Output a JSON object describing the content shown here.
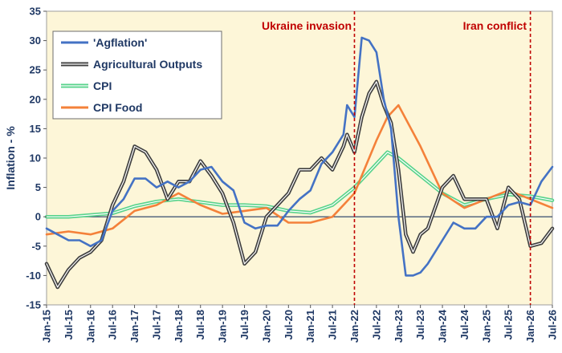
{
  "chart_data": {
    "type": "line",
    "title": "",
    "xlabel": "",
    "ylabel": "Inflation - %",
    "ylim": [
      -15,
      35
    ],
    "yticks": [
      35,
      30,
      25,
      20,
      15,
      10,
      5,
      0,
      -5,
      -10,
      -15
    ],
    "xlim": [
      "Jan-15",
      "Jul-26"
    ],
    "xticks": [
      "Jan-15",
      "Jul-15",
      "Jan-16",
      "Jul-16",
      "Jan-17",
      "Jul-17",
      "Jan-18",
      "Jul-18",
      "Jan-19",
      "Jul-19",
      "Jan-20",
      "Jul-20",
      "Jan-21",
      "Jul-21",
      "Jan-22",
      "Jul-22",
      "Jan-23",
      "Jul-23",
      "Jan-24",
      "Jul-24",
      "Jan-25",
      "Jul-25",
      "Jan-26",
      "Jul-26"
    ],
    "background_color": "#fdf6d8",
    "grid": false,
    "legend_position": "top-left",
    "annotations": [
      {
        "text": "Ukraine invasion",
        "x": "Jan-22",
        "color": "#c00000"
      },
      {
        "text": "Iran conflict",
        "x": "Jan-26",
        "color": "#c00000"
      }
    ],
    "series": [
      {
        "name": "'Agflation'",
        "color": "#4472c4",
        "points": [
          [
            "Jan-15",
            -2
          ],
          [
            "Apr-15",
            -3
          ],
          [
            "Jul-15",
            -4
          ],
          [
            "Oct-15",
            -4
          ],
          [
            "Jan-16",
            -5
          ],
          [
            "Apr-16",
            -4
          ],
          [
            "Jul-16",
            1
          ],
          [
            "Oct-16",
            3
          ],
          [
            "Jan-17",
            6.5
          ],
          [
            "Apr-17",
            6.5
          ],
          [
            "Jul-17",
            5
          ],
          [
            "Oct-17",
            6
          ],
          [
            "Jan-18",
            5
          ],
          [
            "Apr-18",
            6
          ],
          [
            "Jul-18",
            8
          ],
          [
            "Oct-18",
            8.5
          ],
          [
            "Jan-19",
            6
          ],
          [
            "Apr-19",
            4.5
          ],
          [
            "Jul-19",
            -1
          ],
          [
            "Oct-19",
            -2
          ],
          [
            "Jan-20",
            -1.5
          ],
          [
            "Apr-20",
            -1.5
          ],
          [
            "Jul-20",
            1
          ],
          [
            "Oct-20",
            3
          ],
          [
            "Jan-21",
            4.5
          ],
          [
            "Apr-21",
            9
          ],
          [
            "Jul-21",
            11
          ],
          [
            "Oct-21",
            14
          ],
          [
            "Nov-21",
            19
          ],
          [
            "Jan-22",
            17
          ],
          [
            "Mar-22",
            30.5
          ],
          [
            "May-22",
            30
          ],
          [
            "Jul-22",
            28
          ],
          [
            "Sep-22",
            20
          ],
          [
            "Nov-22",
            15
          ],
          [
            "Jan-23",
            0
          ],
          [
            "Mar-23",
            -10
          ],
          [
            "May-23",
            -10
          ],
          [
            "Jul-23",
            -9.5
          ],
          [
            "Sep-23",
            -8
          ],
          [
            "Jan-24",
            -4
          ],
          [
            "Apr-24",
            -1
          ],
          [
            "Jul-24",
            -2
          ],
          [
            "Oct-24",
            -2
          ],
          [
            "Jan-25",
            0
          ],
          [
            "Apr-25",
            0
          ],
          [
            "Jul-25",
            2
          ],
          [
            "Oct-25",
            2.5
          ],
          [
            "Jan-26",
            2
          ],
          [
            "Apr-26",
            6
          ],
          [
            "Jul-26",
            8.5
          ]
        ]
      },
      {
        "name": "Agricultural Outputs",
        "color": "#404040",
        "points": [
          [
            "Jan-15",
            -8
          ],
          [
            "Apr-15",
            -12
          ],
          [
            "Jul-15",
            -9
          ],
          [
            "Oct-15",
            -7
          ],
          [
            "Jan-16",
            -6
          ],
          [
            "Apr-16",
            -4
          ],
          [
            "Jul-16",
            2
          ],
          [
            "Oct-16",
            6
          ],
          [
            "Jan-17",
            12
          ],
          [
            "Apr-17",
            11
          ],
          [
            "Jul-17",
            8
          ],
          [
            "Oct-17",
            3
          ],
          [
            "Jan-18",
            6
          ],
          [
            "Apr-18",
            6
          ],
          [
            "Jul-18",
            9.5
          ],
          [
            "Oct-18",
            7
          ],
          [
            "Jan-19",
            4
          ],
          [
            "Apr-19",
            -1
          ],
          [
            "Jul-19",
            -8
          ],
          [
            "Oct-19",
            -6
          ],
          [
            "Jan-20",
            0
          ],
          [
            "Apr-20",
            2
          ],
          [
            "Jul-20",
            4
          ],
          [
            "Oct-20",
            8
          ],
          [
            "Jan-21",
            8
          ],
          [
            "Apr-21",
            10
          ],
          [
            "Jul-21",
            8
          ],
          [
            "Oct-21",
            12
          ],
          [
            "Nov-21",
            14
          ],
          [
            "Jan-22",
            11
          ],
          [
            "Mar-22",
            17
          ],
          [
            "May-22",
            21
          ],
          [
            "Jul-22",
            23
          ],
          [
            "Sep-22",
            19
          ],
          [
            "Nov-22",
            16
          ],
          [
            "Jan-23",
            8
          ],
          [
            "Mar-23",
            -3
          ],
          [
            "May-23",
            -6
          ],
          [
            "Jul-23",
            -3
          ],
          [
            "Sep-23",
            -2
          ],
          [
            "Jan-24",
            5
          ],
          [
            "Apr-24",
            7
          ],
          [
            "Jul-24",
            3
          ],
          [
            "Oct-24",
            3
          ],
          [
            "Jan-25",
            3
          ],
          [
            "Apr-25",
            -2
          ],
          [
            "Jul-25",
            5
          ],
          [
            "Oct-25",
            3
          ],
          [
            "Jan-26",
            -5
          ],
          [
            "Apr-26",
            -4.5
          ],
          [
            "Jul-26",
            -2
          ]
        ]
      },
      {
        "name": "CPI",
        "color": "#59d38c",
        "points": [
          [
            "Jan-15",
            0
          ],
          [
            "Jul-15",
            0
          ],
          [
            "Jan-16",
            0.3
          ],
          [
            "Jul-16",
            0.6
          ],
          [
            "Jan-17",
            1.8
          ],
          [
            "Jul-17",
            2.6
          ],
          [
            "Jan-18",
            3
          ],
          [
            "Jul-18",
            2.5
          ],
          [
            "Jan-19",
            2
          ],
          [
            "Jul-19",
            2
          ],
          [
            "Jan-20",
            1.8
          ],
          [
            "Jul-20",
            1
          ],
          [
            "Jan-21",
            0.7
          ],
          [
            "Jul-21",
            2
          ],
          [
            "Jan-22",
            5
          ],
          [
            "Jul-22",
            9
          ],
          [
            "Oct-22",
            11
          ],
          [
            "Jan-23",
            10
          ],
          [
            "Jul-23",
            7
          ],
          [
            "Jan-24",
            4
          ],
          [
            "Jul-24",
            2
          ],
          [
            "Jan-25",
            3
          ],
          [
            "Jul-25",
            3.8
          ],
          [
            "Jan-26",
            3.5
          ],
          [
            "Jul-26",
            2.8
          ]
        ]
      },
      {
        "name": "CPI Food",
        "color": "#f4813a",
        "points": [
          [
            "Jan-15",
            -3
          ],
          [
            "Jul-15",
            -2.5
          ],
          [
            "Jan-16",
            -3
          ],
          [
            "Jul-16",
            -2
          ],
          [
            "Jan-17",
            1
          ],
          [
            "Jul-17",
            2
          ],
          [
            "Jan-18",
            4
          ],
          [
            "Jul-18",
            2
          ],
          [
            "Jan-19",
            0.5
          ],
          [
            "Jul-19",
            1
          ],
          [
            "Jan-20",
            1.5
          ],
          [
            "Jul-20",
            -1
          ],
          [
            "Jan-21",
            -1
          ],
          [
            "Jul-21",
            0
          ],
          [
            "Jan-22",
            4
          ],
          [
            "Jul-22",
            13
          ],
          [
            "Oct-22",
            17
          ],
          [
            "Jan-23",
            19
          ],
          [
            "Jul-23",
            12
          ],
          [
            "Jan-24",
            4
          ],
          [
            "Jul-24",
            1.5
          ],
          [
            "Jan-25",
            3
          ],
          [
            "Jul-25",
            4.5
          ],
          [
            "Jan-26",
            3
          ],
          [
            "Jul-26",
            1.5
          ]
        ]
      }
    ]
  }
}
